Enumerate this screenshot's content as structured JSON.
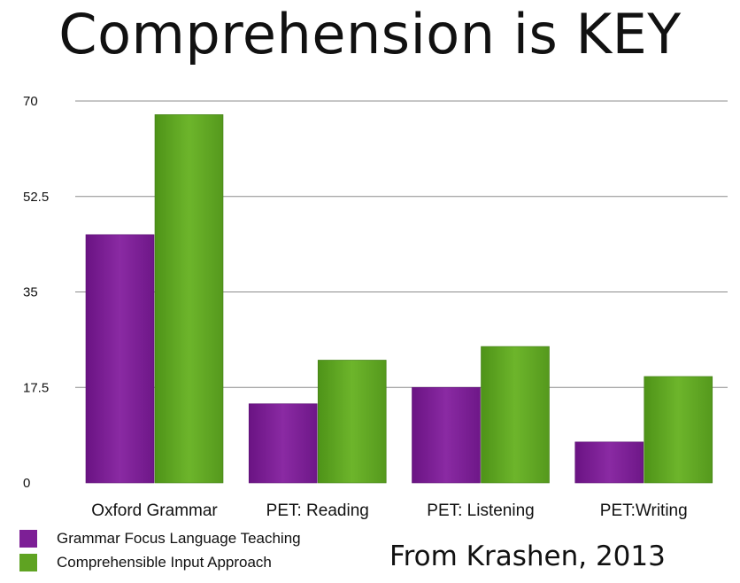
{
  "title": "Comprehension is KEY",
  "credit": "From Krashen, 2013",
  "colors": {
    "grammar": "#7d1f96",
    "comprehensible": "#5fa322"
  },
  "chart_data": {
    "type": "bar",
    "categories": [
      "Oxford Grammar",
      "PET: Reading",
      "PET: Listening",
      "PET:Writing"
    ],
    "series": [
      {
        "name": "Grammar Focus Language Teaching",
        "values": [
          45.5,
          14.5,
          17.5,
          7.5
        ]
      },
      {
        "name": "Comprehensible Input Approach",
        "values": [
          67.5,
          22.5,
          25.0,
          19.5
        ]
      }
    ],
    "yticks": [
      "0",
      "17.5",
      "35",
      "52.5",
      "70"
    ],
    "ylim": [
      0,
      70
    ],
    "grid": true,
    "legend_position": "bottom-left"
  }
}
